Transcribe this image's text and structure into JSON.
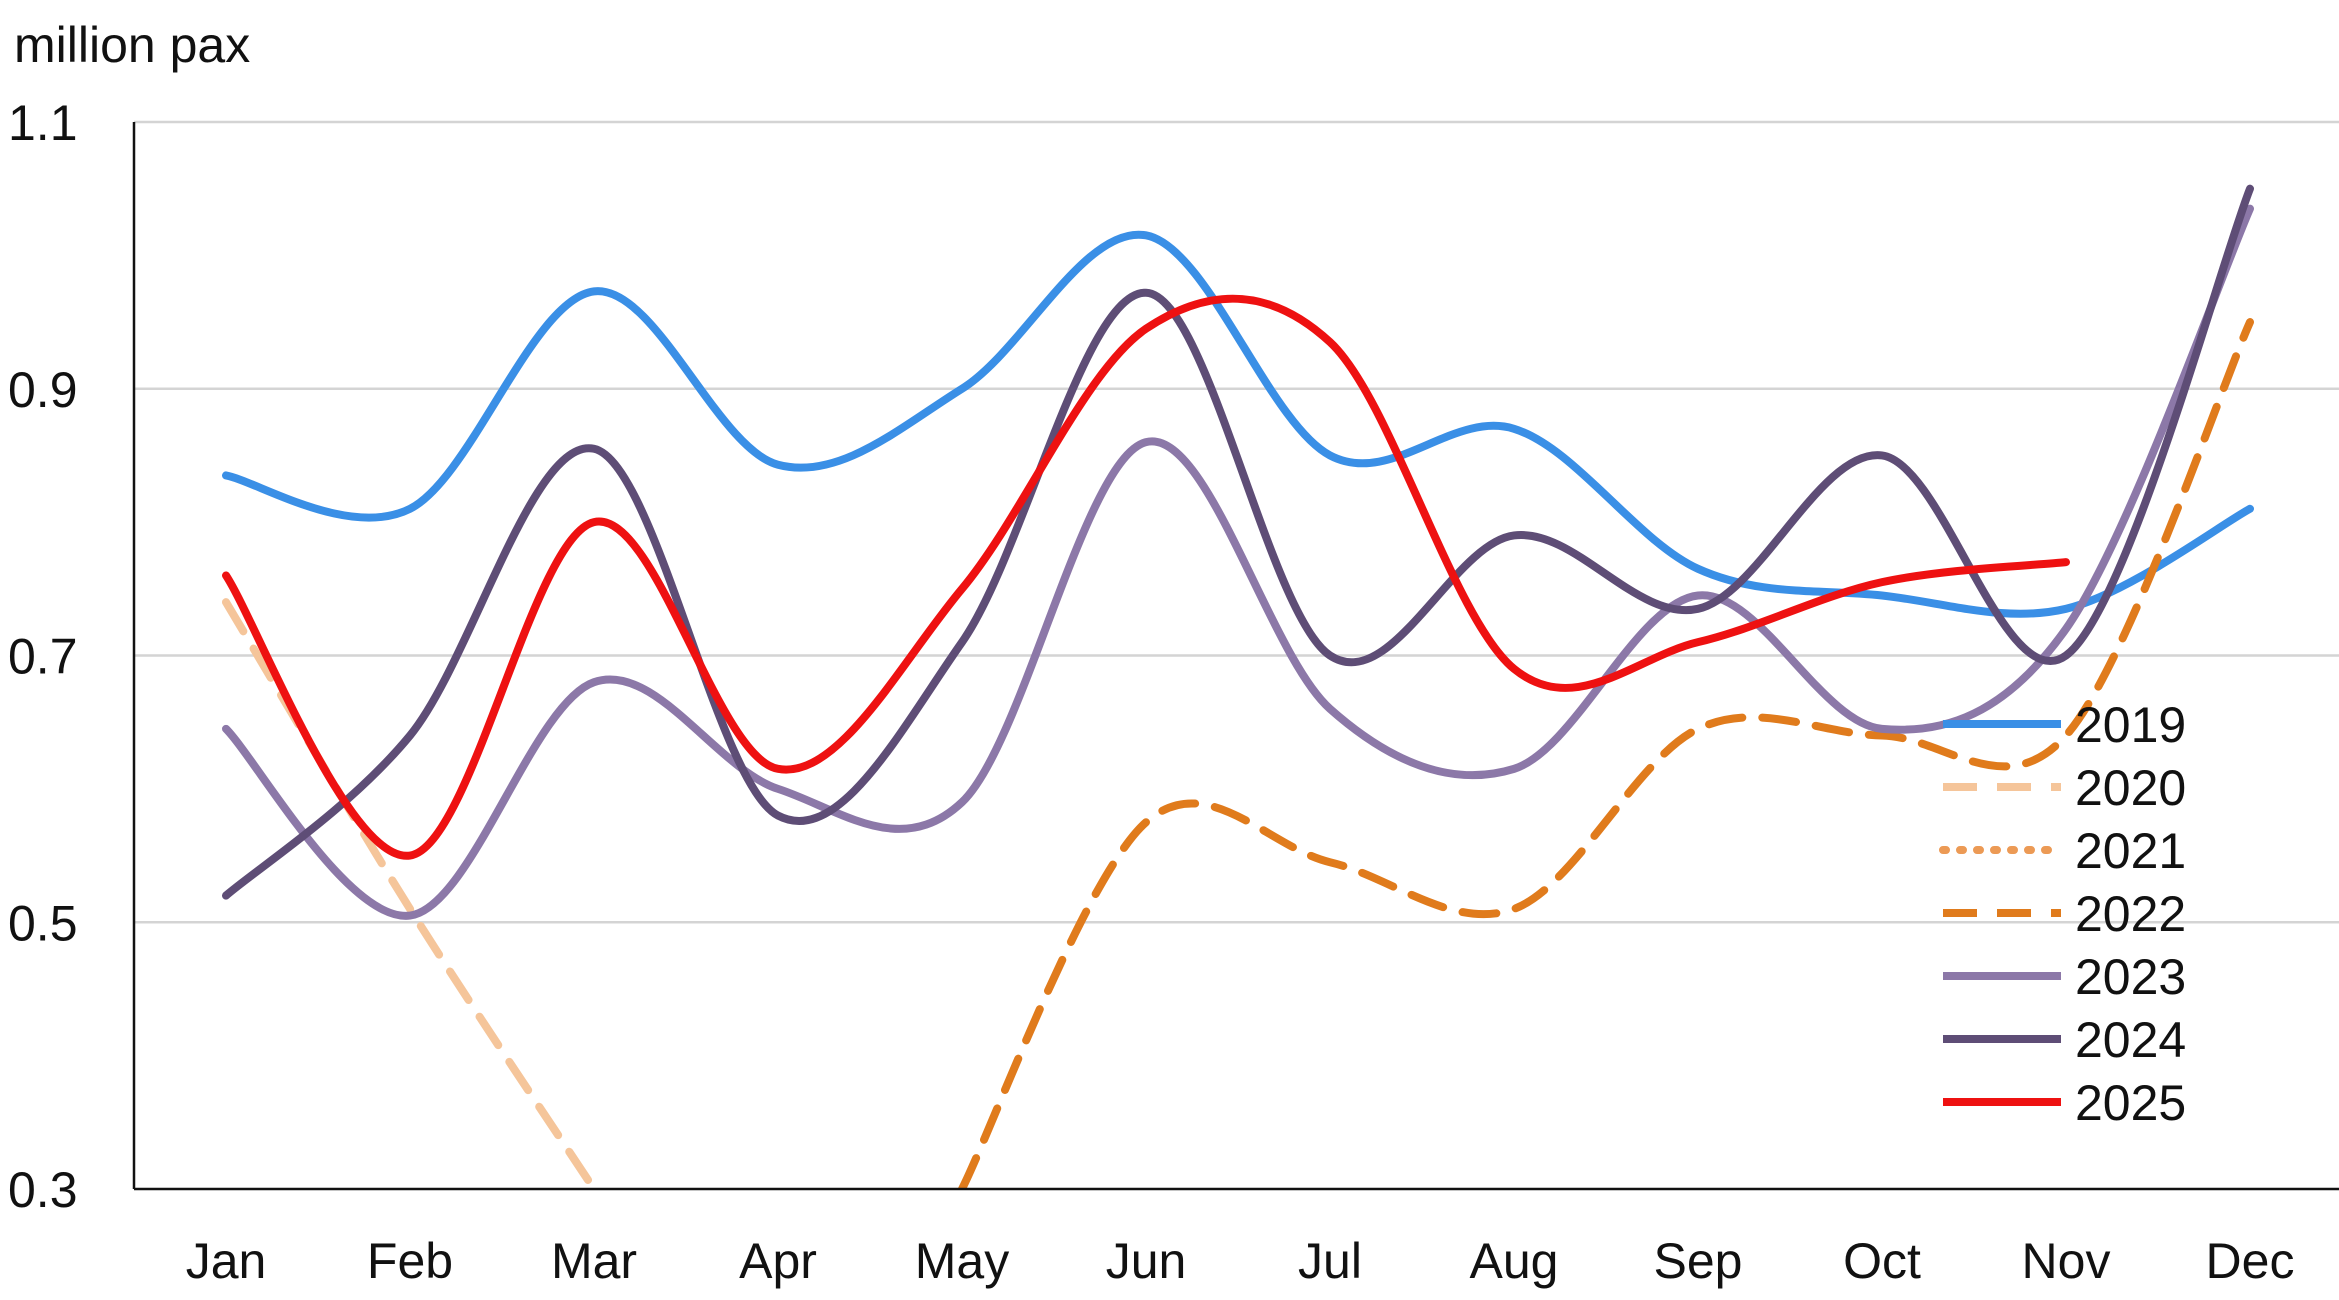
{
  "chart_data": {
    "type": "line",
    "ylabel": "million pax",
    "ylim": [
      0.3,
      1.1
    ],
    "yticks": [
      0.3,
      0.5,
      0.7,
      0.9,
      1.1
    ],
    "ytick_labels": [
      "0.3",
      "0.5",
      "0.7",
      "0.9",
      "1.1"
    ],
    "categories": [
      "Jan",
      "Feb",
      "Mar",
      "Apr",
      "May",
      "Jun",
      "Jul",
      "Aug",
      "Sep",
      "Oct",
      "Nov",
      "Dec"
    ],
    "grid": true,
    "legend_position": "right",
    "series": [
      {
        "name": "2019",
        "color": "#3a8fe6",
        "style": "solid",
        "values": [
          0.835,
          0.81,
          0.973,
          0.843,
          0.9,
          1.015,
          0.85,
          0.87,
          0.765,
          0.745,
          0.735,
          0.81
        ]
      },
      {
        "name": "2020",
        "color": "#f5c59a",
        "style": "dashed",
        "values": [
          0.74,
          0.51,
          0.3,
          null,
          null,
          null,
          null,
          null,
          null,
          null,
          null,
          null
        ]
      },
      {
        "name": "2021",
        "color": "#ec9a55",
        "style": "dotted",
        "values": [
          null,
          null,
          null,
          null,
          null,
          null,
          null,
          null,
          null,
          null,
          null,
          null
        ]
      },
      {
        "name": "2022",
        "color": "#e07b1c",
        "style": "dashed",
        "values": [
          null,
          null,
          null,
          null,
          0.3,
          0.575,
          0.545,
          0.51,
          0.645,
          0.64,
          0.64,
          0.95
        ]
      },
      {
        "name": "2023",
        "color": "#8c78a8",
        "style": "solid",
        "values": [
          0.645,
          0.505,
          0.68,
          0.6,
          0.59,
          0.86,
          0.66,
          0.615,
          0.745,
          0.645,
          0.72,
          1.035
        ]
      },
      {
        "name": "2024",
        "color": "#5e4d76",
        "style": "solid",
        "values": [
          0.52,
          0.64,
          0.855,
          0.58,
          0.71,
          0.972,
          0.7,
          0.79,
          0.735,
          0.85,
          0.7,
          1.05
        ]
      },
      {
        "name": "2025",
        "color": "#ee1111",
        "style": "solid",
        "values": [
          0.76,
          0.55,
          0.8,
          0.615,
          0.75,
          0.945,
          0.935,
          0.69,
          0.71,
          0.755,
          0.77,
          null
        ]
      }
    ]
  }
}
